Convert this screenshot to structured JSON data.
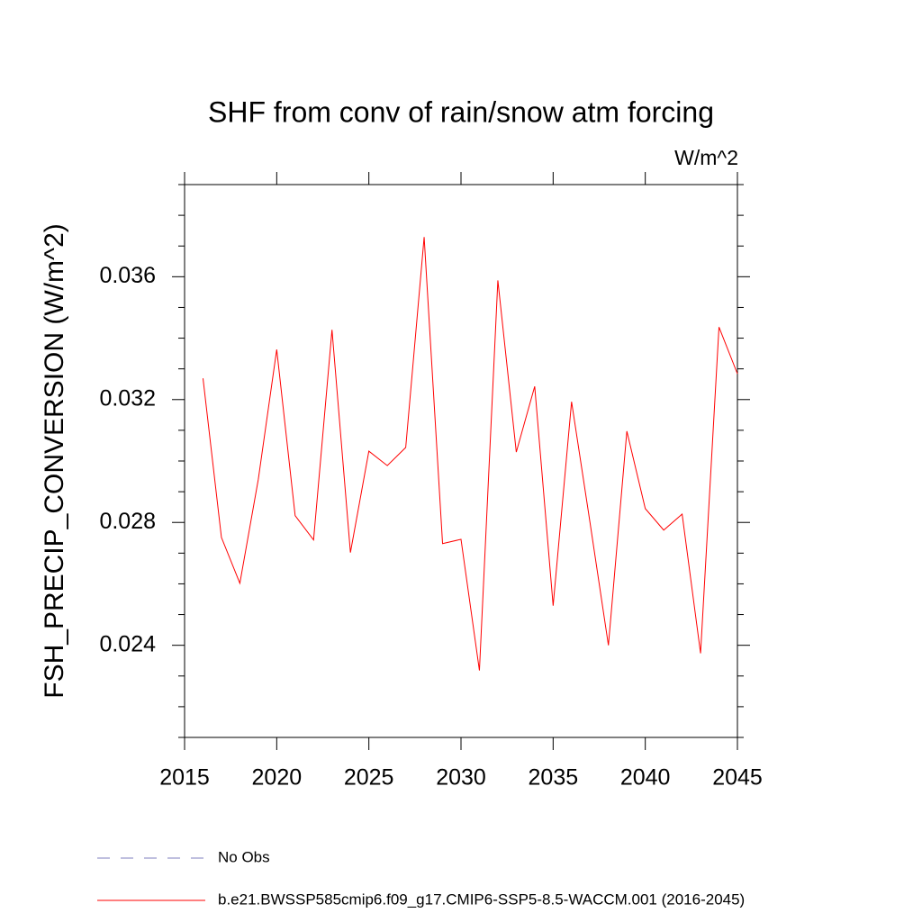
{
  "chart_data": {
    "type": "line",
    "title": "SHF from conv of rain/snow atm forcing",
    "units": "W/m^2",
    "y_label": "FSH_PRECIP_CONVERSION  (W/m^2)",
    "x": [
      2016,
      2017,
      2018,
      2019,
      2020,
      2021,
      2022,
      2023,
      2024,
      2025,
      2026,
      2027,
      2028,
      2029,
      2030,
      2031,
      2032,
      2033,
      2034,
      2035,
      2036,
      2037,
      2038,
      2039,
      2040,
      2041,
      2042,
      2043,
      2044,
      2045
    ],
    "series": [
      {
        "name": "No Obs",
        "color": "#7f7fbf",
        "dashed": true,
        "values": [
          null,
          null,
          null,
          null,
          null,
          null,
          null,
          null,
          null,
          null,
          null,
          null,
          null,
          null,
          null,
          null,
          null,
          null,
          null,
          null,
          null,
          null,
          null,
          null,
          null,
          null,
          null,
          null,
          null,
          null
        ]
      },
      {
        "name": "b.e21.BWSSP585cmip6.f09_g17.CMIP6-SSP5-8.5-WACCM.001 (2016-2045)",
        "color": "#ff0000",
        "dashed": false,
        "values": [
          0.03269,
          0.02751,
          0.02602,
          0.0294,
          0.03363,
          0.02822,
          0.02743,
          0.03427,
          0.02702,
          0.03032,
          0.02985,
          0.03044,
          0.03729,
          0.02731,
          0.02745,
          0.02318,
          0.03588,
          0.03029,
          0.03243,
          0.02529,
          0.03193,
          0.028,
          0.024,
          0.03097,
          0.02845,
          0.02775,
          0.02827,
          0.02374,
          0.03436,
          0.03284
        ]
      }
    ],
    "xlim": [
      2015,
      2045
    ],
    "xticks": [
      2015,
      2020,
      2025,
      2030,
      2035,
      2040,
      2045
    ],
    "ylim": [
      0.021,
      0.039
    ],
    "yticks": [
      0.024,
      0.028,
      0.032,
      0.036
    ],
    "yminorticks": [
      0.021,
      0.022,
      0.023,
      0.025,
      0.026,
      0.027,
      0.029,
      0.03,
      0.031,
      0.033,
      0.034,
      0.035,
      0.037,
      0.038,
      0.039
    ]
  }
}
